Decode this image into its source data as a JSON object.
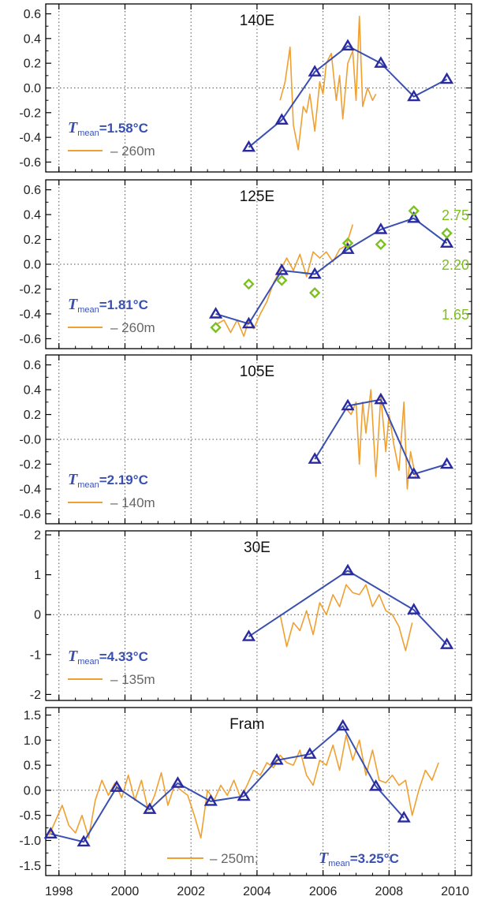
{
  "colors": {
    "obs_line": "#f0a030",
    "model_line": "#3a50b0",
    "marker": "#2a2aa0",
    "green": "#7cc020",
    "legend_blue": "#3a50b0",
    "legend_orange": "#f0a030",
    "axis": "#000000",
    "grid": "#555555"
  },
  "x_axis": {
    "range": [
      1997.6,
      2010.5
    ],
    "ticks": [
      1998,
      2000,
      2002,
      2004,
      2006,
      2008,
      2010
    ],
    "tick_labels": [
      "1998",
      "2000",
      "2002",
      "2004",
      "2006",
      "2008",
      "2010"
    ]
  },
  "chart_data": [
    {
      "type": "line",
      "title": "140E",
      "ylim": [
        -0.68,
        0.68
      ],
      "yticks": [
        -0.6,
        -0.4,
        -0.2,
        0.0,
        0.2,
        0.4,
        0.6
      ],
      "ytick_labels": [
        "-0.6",
        "-0.4",
        "-0.2",
        "0.0",
        "0.2",
        "0.4",
        "0.6"
      ],
      "grid": true,
      "legend": {
        "prefix": "T",
        "subscript": "mean",
        "value": "=1.58°C",
        "line_label": "– 260m",
        "placement": "bottom-left"
      },
      "series": [
        {
          "role": "triangles",
          "x": [
            2003.75,
            2004.75,
            2005.75,
            2006.75,
            2007.75,
            2008.75,
            2009.75
          ],
          "y": [
            -0.48,
            -0.26,
            0.13,
            0.34,
            0.2,
            -0.07,
            0.07
          ]
        },
        {
          "role": "orange",
          "x": [
            2004.7,
            2004.85,
            2005.0,
            2005.1,
            2005.25,
            2005.4,
            2005.5,
            2005.6,
            2005.75,
            2005.9,
            2006.0,
            2006.1,
            2006.25,
            2006.4,
            2006.5,
            2006.6,
            2006.75,
            2006.9,
            2007.0,
            2007.1,
            2007.2,
            2007.35,
            2007.5,
            2007.6
          ],
          "y": [
            -0.1,
            0.05,
            0.33,
            -0.3,
            -0.5,
            -0.15,
            -0.2,
            -0.05,
            -0.35,
            0.05,
            -0.05,
            0.2,
            0.28,
            -0.1,
            0.1,
            -0.25,
            0.2,
            0.3,
            -0.1,
            0.58,
            -0.15,
            0.0,
            -0.1,
            -0.05
          ]
        }
      ]
    },
    {
      "type": "line",
      "title": "125E",
      "ylim": [
        -0.68,
        0.68
      ],
      "yticks": [
        -0.6,
        -0.4,
        -0.2,
        0.0,
        0.2,
        0.4,
        0.6
      ],
      "ytick_labels": [
        "-0.6",
        "-0.4",
        "-0.2",
        "0.0",
        "0.2",
        "0.4",
        "0.6"
      ],
      "grid": true,
      "legend": {
        "prefix": "T",
        "subscript": "mean",
        "value": "=1.81°C",
        "line_label": "– 260m",
        "placement": "bottom-left"
      },
      "right_axis": {
        "labels": [
          "2.75",
          "2.20",
          "1.65"
        ],
        "values": [
          2.75,
          2.2,
          1.65
        ],
        "left_equiv": [
          0.4,
          0.0,
          -0.4
        ]
      },
      "series": [
        {
          "role": "triangles",
          "x": [
            2002.75,
            2003.75,
            2004.75,
            2005.75,
            2006.75,
            2007.75,
            2008.75,
            2009.75
          ],
          "y": [
            -0.4,
            -0.48,
            -0.05,
            -0.08,
            0.12,
            0.28,
            0.37,
            0.17
          ]
        },
        {
          "role": "diamonds",
          "x": [
            2002.75,
            2003.75,
            2004.75,
            2005.75,
            2006.75,
            2007.75,
            2008.75,
            2009.75
          ],
          "y": [
            -0.51,
            -0.16,
            -0.13,
            -0.23,
            0.17,
            0.16,
            0.43,
            0.25
          ]
        },
        {
          "role": "orange",
          "x": [
            2002.8,
            2003.0,
            2003.2,
            2003.4,
            2003.6,
            2003.75,
            2003.9,
            2004.1,
            2004.3,
            2004.5,
            2004.7,
            2004.9,
            2005.1,
            2005.3,
            2005.5,
            2005.7,
            2005.9,
            2006.1,
            2006.3,
            2006.5,
            2006.7,
            2006.9
          ],
          "y": [
            -0.48,
            -0.45,
            -0.55,
            -0.45,
            -0.58,
            -0.45,
            -0.52,
            -0.4,
            -0.3,
            -0.15,
            -0.05,
            0.05,
            -0.05,
            0.08,
            -0.1,
            0.1,
            0.05,
            0.1,
            0.02,
            0.12,
            0.15,
            0.32
          ]
        }
      ]
    },
    {
      "type": "line",
      "title": "105E",
      "ylim": [
        -0.68,
        0.68
      ],
      "yticks": [
        -0.6,
        -0.4,
        -0.2,
        0.0,
        0.2,
        0.4,
        0.6
      ],
      "ytick_labels": [
        "-0.6",
        "-0.4",
        "-0.2",
        "-0.0",
        "0.2",
        "0.4",
        "0.6"
      ],
      "grid": true,
      "legend": {
        "prefix": "T",
        "subscript": "mean",
        "value": "=2.19°C",
        "line_label": "– 140m",
        "placement": "bottom-left"
      },
      "series": [
        {
          "role": "triangles",
          "x": [
            2005.75,
            2006.75,
            2007.75,
            2008.75,
            2009.75
          ],
          "y": [
            -0.16,
            0.27,
            0.32,
            -0.28,
            -0.2
          ]
        },
        {
          "role": "orange",
          "x": [
            2006.7,
            2006.85,
            2007.0,
            2007.1,
            2007.2,
            2007.3,
            2007.45,
            2007.6,
            2007.75,
            2007.9,
            2008.0,
            2008.15,
            2008.3,
            2008.45,
            2008.55,
            2008.65,
            2008.8
          ],
          "y": [
            0.25,
            0.2,
            0.3,
            -0.2,
            0.3,
            0.05,
            0.4,
            -0.3,
            0.35,
            -0.1,
            0.2,
            -0.05,
            -0.25,
            0.3,
            -0.4,
            -0.1,
            -0.3
          ]
        }
      ]
    },
    {
      "type": "line",
      "title": "30E",
      "ylim": [
        -2.15,
        2.1
      ],
      "yticks": [
        -2,
        -1,
        0,
        1,
        2
      ],
      "ytick_labels": [
        "-2",
        "-1",
        "0",
        "1",
        "2"
      ],
      "grid": true,
      "legend": {
        "prefix": "T",
        "subscript": "mean",
        "value": "=4.33°C",
        "line_label": "– 135m",
        "placement": "bottom-left"
      },
      "series": [
        {
          "role": "triangles",
          "x": [
            2003.75,
            2006.75,
            2008.75,
            2009.75
          ],
          "y": [
            -0.55,
            1.1,
            0.12,
            -0.75
          ]
        },
        {
          "role": "orange",
          "x": [
            2004.7,
            2004.9,
            2005.1,
            2005.3,
            2005.5,
            2005.7,
            2005.9,
            2006.1,
            2006.3,
            2006.5,
            2006.7,
            2006.9,
            2007.1,
            2007.3,
            2007.5,
            2007.7,
            2007.9,
            2008.1,
            2008.3,
            2008.5,
            2008.7
          ],
          "y": [
            0.0,
            -0.8,
            -0.2,
            -0.4,
            0.1,
            -0.5,
            0.3,
            0.0,
            0.5,
            0.2,
            0.75,
            0.55,
            0.5,
            0.75,
            0.2,
            0.5,
            0.1,
            0.0,
            -0.3,
            -0.9,
            -0.2
          ]
        }
      ]
    },
    {
      "type": "line",
      "title": "Fram",
      "ylim": [
        -1.7,
        1.65
      ],
      "yticks": [
        -1.5,
        -1.0,
        -0.5,
        0.0,
        0.5,
        1.0,
        1.5
      ],
      "ytick_labels": [
        "-1.5",
        "-1.0",
        "-0.5",
        "0.0",
        "0.5",
        "1.0",
        "1.5"
      ],
      "grid": true,
      "legend": {
        "prefix": "T",
        "subscript": "mean",
        "value": "=3.25°C",
        "line_label": "– 250m;",
        "placement": "bottom-right"
      },
      "series": [
        {
          "role": "triangles",
          "x": [
            1997.75,
            1998.75,
            1999.75,
            2000.75,
            2001.6,
            2002.6,
            2003.6,
            2004.6,
            2005.6,
            2006.6,
            2007.6,
            2008.45
          ],
          "y": [
            -0.87,
            -1.03,
            0.06,
            -0.38,
            0.14,
            -0.22,
            -0.12,
            0.6,
            0.72,
            1.28,
            0.08,
            -0.55
          ]
        },
        {
          "role": "orange",
          "x": [
            1997.7,
            1997.9,
            1998.1,
            1998.3,
            1998.5,
            1998.7,
            1998.9,
            1999.1,
            1999.3,
            1999.5,
            1999.7,
            1999.9,
            2000.1,
            2000.3,
            2000.5,
            2000.7,
            2000.9,
            2001.1,
            2001.3,
            2001.5,
            2001.7,
            2001.9,
            2002.1,
            2002.3,
            2002.5,
            2002.7,
            2002.9,
            2003.1,
            2003.3,
            2003.5,
            2003.7,
            2003.9,
            2004.1,
            2004.3,
            2004.5,
            2004.7,
            2004.9,
            2005.1,
            2005.3,
            2005.5,
            2005.7,
            2005.9,
            2006.1,
            2006.3,
            2006.5,
            2006.7,
            2006.9,
            2007.1,
            2007.3,
            2007.5,
            2007.7,
            2007.9,
            2008.1,
            2008.3,
            2008.5,
            2008.7,
            2008.9,
            2009.1,
            2009.3,
            2009.5
          ],
          "y": [
            -0.9,
            -0.6,
            -0.3,
            -0.7,
            -0.85,
            -0.5,
            -0.95,
            -0.2,
            0.2,
            -0.1,
            0.15,
            -0.15,
            0.3,
            -0.2,
            0.2,
            -0.4,
            -0.1,
            0.35,
            -0.3,
            0.1,
            0.0,
            -0.1,
            -0.5,
            -0.95,
            0.0,
            -0.2,
            0.1,
            -0.1,
            0.2,
            -0.15,
            0.1,
            0.4,
            0.3,
            0.55,
            0.45,
            0.7,
            0.55,
            0.5,
            0.8,
            0.3,
            0.1,
            0.6,
            0.5,
            0.9,
            0.4,
            1.1,
            0.6,
            1.0,
            0.3,
            0.8,
            0.2,
            0.15,
            0.3,
            0.1,
            0.2,
            -0.5,
            0.0,
            0.4,
            0.2,
            0.55
          ]
        }
      ]
    }
  ]
}
